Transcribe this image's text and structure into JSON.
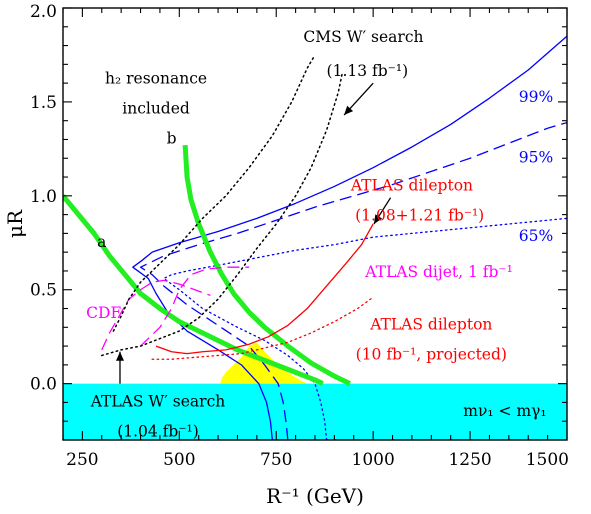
{
  "chart_data": {
    "type": "line",
    "title": "",
    "xlabel": "R⁻¹ (GeV)",
    "ylabel": "μR",
    "xlim": [
      200,
      1500
    ],
    "ylim": [
      -0.3,
      2.0
    ],
    "grid": false,
    "x_ticks": [
      250,
      500,
      750,
      1000,
      1250,
      1500
    ],
    "x_tick_labels": [
      "250",
      "500",
      "750",
      "1000",
      "1250",
      "1500"
    ],
    "y_ticks": [
      0.0,
      0.5,
      1.0,
      1.5,
      2.0
    ],
    "y_tick_labels": [
      "0.0",
      "0.5",
      "1.0",
      "1.5",
      "2.0"
    ],
    "regions": [
      {
        "name": "excluded_band",
        "color": "#00ffff",
        "y_range": [
          -0.3,
          0.0
        ],
        "label": "mν₁ < mγ₁"
      },
      {
        "name": "allowed_region",
        "color": "#ffff00",
        "points": [
          [
            605,
            0.0
          ],
          [
            610,
            0.03
          ],
          [
            620,
            0.06
          ],
          [
            640,
            0.1
          ],
          [
            660,
            0.14
          ],
          [
            680,
            0.2
          ],
          [
            700,
            0.22
          ],
          [
            720,
            0.17
          ],
          [
            750,
            0.11
          ],
          [
            780,
            0.06
          ],
          [
            810,
            0.02
          ],
          [
            830,
            0.0
          ]
        ]
      }
    ],
    "series": [
      {
        "name": "99%",
        "color": "#0000ff",
        "style": "solid",
        "width": 1.3,
        "points": [
          [
            740,
            -0.3
          ],
          [
            735,
            -0.2
          ],
          [
            725,
            -0.1
          ],
          [
            705,
            0.0
          ],
          [
            660,
            0.1
          ],
          [
            600,
            0.18
          ],
          [
            520,
            0.28
          ],
          [
            470,
            0.38
          ],
          [
            440,
            0.48
          ],
          [
            420,
            0.56
          ],
          [
            380,
            0.62
          ],
          [
            400,
            0.65
          ],
          [
            430,
            0.7
          ],
          [
            500,
            0.75
          ],
          [
            600,
            0.81
          ],
          [
            700,
            0.88
          ],
          [
            800,
            0.96
          ],
          [
            900,
            1.05
          ],
          [
            1000,
            1.15
          ],
          [
            1100,
            1.26
          ],
          [
            1200,
            1.38
          ],
          [
            1300,
            1.52
          ],
          [
            1400,
            1.67
          ],
          [
            1500,
            1.85
          ]
        ]
      },
      {
        "name": "95%",
        "color": "#0000ff",
        "style": "dashed",
        "width": 1.3,
        "points": [
          [
            780,
            -0.3
          ],
          [
            775,
            -0.2
          ],
          [
            768,
            -0.1
          ],
          [
            755,
            0.0
          ],
          [
            720,
            0.1
          ],
          [
            680,
            0.2
          ],
          [
            600,
            0.31
          ],
          [
            520,
            0.42
          ],
          [
            460,
            0.52
          ],
          [
            430,
            0.58
          ],
          [
            400,
            0.62
          ],
          [
            420,
            0.64
          ],
          [
            460,
            0.68
          ],
          [
            550,
            0.74
          ],
          [
            650,
            0.8
          ],
          [
            750,
            0.87
          ],
          [
            850,
            0.94
          ],
          [
            950,
            1.0
          ],
          [
            1050,
            1.06
          ],
          [
            1150,
            1.13
          ],
          [
            1250,
            1.2
          ],
          [
            1350,
            1.28
          ],
          [
            1450,
            1.36
          ],
          [
            1500,
            1.39
          ]
        ]
      },
      {
        "name": "65%",
        "color": "#0000ff",
        "style": "dotted",
        "width": 1.3,
        "points": [
          [
            880,
            -0.3
          ],
          [
            875,
            -0.2
          ],
          [
            865,
            -0.1
          ],
          [
            850,
            0.0
          ],
          [
            820,
            0.08
          ],
          [
            780,
            0.15
          ],
          [
            720,
            0.23
          ],
          [
            650,
            0.3
          ],
          [
            560,
            0.4
          ],
          [
            500,
            0.5
          ],
          [
            460,
            0.56
          ],
          [
            480,
            0.58
          ],
          [
            520,
            0.6
          ],
          [
            600,
            0.63
          ],
          [
            700,
            0.67
          ],
          [
            800,
            0.71
          ],
          [
            900,
            0.74
          ],
          [
            1000,
            0.78
          ],
          [
            1100,
            0.8
          ],
          [
            1200,
            0.82
          ],
          [
            1300,
            0.84
          ],
          [
            1400,
            0.86
          ],
          [
            1500,
            0.88
          ]
        ]
      },
      {
        "name": "a",
        "color": "#22ee22",
        "style": "solid",
        "width": 5,
        "points": [
          [
            200,
            1.0
          ],
          [
            240,
            0.9
          ],
          [
            280,
            0.8
          ],
          [
            320,
            0.68
          ],
          [
            360,
            0.58
          ],
          [
            400,
            0.48
          ],
          [
            450,
            0.4
          ],
          [
            500,
            0.33
          ],
          [
            550,
            0.28
          ],
          [
            600,
            0.23
          ],
          [
            650,
            0.18
          ],
          [
            700,
            0.14
          ],
          [
            750,
            0.1
          ],
          [
            800,
            0.06
          ],
          [
            850,
            0.02
          ],
          [
            870,
            0.0
          ]
        ]
      },
      {
        "name": "b",
        "color": "#22ee22",
        "style": "solid",
        "width": 5,
        "points": [
          [
            515,
            1.27
          ],
          [
            520,
            1.1
          ],
          [
            530,
            0.98
          ],
          [
            550,
            0.85
          ],
          [
            580,
            0.7
          ],
          [
            610,
            0.58
          ],
          [
            640,
            0.48
          ],
          [
            680,
            0.38
          ],
          [
            720,
            0.3
          ],
          [
            780,
            0.2
          ],
          [
            840,
            0.11
          ],
          [
            900,
            0.04
          ],
          [
            940,
            0.0
          ]
        ]
      },
      {
        "name": "ATLAS dilepton",
        "color": "#ff0000",
        "style": "solid",
        "width": 1.3,
        "points": [
          [
            440,
            0.2
          ],
          [
            480,
            0.17
          ],
          [
            520,
            0.16
          ],
          [
            560,
            0.17
          ],
          [
            620,
            0.18
          ],
          [
            680,
            0.21
          ],
          [
            730,
            0.25
          ],
          [
            780,
            0.31
          ],
          [
            830,
            0.4
          ],
          [
            880,
            0.52
          ],
          [
            930,
            0.64
          ],
          [
            970,
            0.74
          ],
          [
            1000,
            0.85
          ]
        ]
      },
      {
        "name": "ATLAS dilepton (10 fb⁻¹, projected)",
        "color": "#ff0000",
        "style": "dotted",
        "width": 1.3,
        "points": [
          [
            430,
            0.13
          ],
          [
            480,
            0.13
          ],
          [
            540,
            0.14
          ],
          [
            600,
            0.15
          ],
          [
            660,
            0.16
          ],
          [
            720,
            0.19
          ],
          [
            780,
            0.22
          ],
          [
            840,
            0.27
          ],
          [
            900,
            0.33
          ],
          [
            960,
            0.4
          ],
          [
            1000,
            0.46
          ]
        ]
      },
      {
        "name": "CDF",
        "color": "#ff00ff",
        "style": "dashed",
        "width": 1.3,
        "points": [
          [
            300,
            0.18
          ],
          [
            320,
            0.27
          ],
          [
            345,
            0.36
          ],
          [
            370,
            0.45
          ],
          [
            400,
            0.5
          ],
          [
            430,
            0.54
          ],
          [
            460,
            0.55
          ],
          [
            500,
            0.53
          ],
          [
            540,
            0.5
          ],
          [
            580,
            0.47
          ]
        ]
      },
      {
        "name": "ATLAS dijet, 1 fb⁻¹",
        "color": "#ff00ff",
        "style": "dashed",
        "width": 1.3,
        "points": [
          [
            400,
            0.2
          ],
          [
            420,
            0.24
          ],
          [
            450,
            0.3
          ],
          [
            480,
            0.4
          ],
          [
            500,
            0.5
          ],
          [
            530,
            0.58
          ],
          [
            570,
            0.61
          ],
          [
            620,
            0.62
          ],
          [
            680,
            0.62
          ]
        ]
      },
      {
        "name": "ATLAS W′ search",
        "color": "#000000",
        "style": "dotted",
        "width": 1.5,
        "points": [
          [
            300,
            0.15
          ],
          [
            350,
            0.18
          ],
          [
            400,
            0.2
          ],
          [
            450,
            0.24
          ],
          [
            500,
            0.28
          ],
          [
            550,
            0.35
          ],
          [
            600,
            0.45
          ],
          [
            650,
            0.58
          ],
          [
            700,
            0.72
          ],
          [
            750,
            0.85
          ],
          [
            800,
            1.0
          ],
          [
            840,
            1.15
          ],
          [
            880,
            1.35
          ],
          [
            910,
            1.55
          ],
          [
            920,
            1.65
          ]
        ]
      },
      {
        "name": "CMS W′ search",
        "color": "#000000",
        "style": "dotted",
        "width": 1.5,
        "points": [
          [
            330,
            0.28
          ],
          [
            350,
            0.36
          ],
          [
            370,
            0.45
          ],
          [
            400,
            0.54
          ],
          [
            440,
            0.62
          ],
          [
            500,
            0.74
          ],
          [
            560,
            0.88
          ],
          [
            620,
            1.0
          ],
          [
            680,
            1.15
          ],
          [
            740,
            1.32
          ],
          [
            790,
            1.5
          ],
          [
            830,
            1.68
          ],
          [
            850,
            1.75
          ]
        ]
      }
    ],
    "annotations": [
      {
        "name": "cms-label",
        "text": "CMS W′ search",
        "color": "#000000",
        "x": 975,
        "y": 1.84,
        "anchor": "middle"
      },
      {
        "name": "cms-lumi",
        "text": "(1.13 fb⁻¹)",
        "color": "#000000",
        "x": 985,
        "y": 1.66,
        "anchor": "middle"
      },
      {
        "name": "h2-label-1",
        "text": "h₂ resonance",
        "color": "#000000",
        "x": 440,
        "y": 1.62,
        "anchor": "middle"
      },
      {
        "name": "h2-label-2",
        "text": "included",
        "color": "#000000",
        "x": 440,
        "y": 1.46,
        "anchor": "middle"
      },
      {
        "name": "label-b",
        "text": "b",
        "color": "#000000",
        "x": 480,
        "y": 1.3,
        "anchor": "middle"
      },
      {
        "name": "label-a",
        "text": "a",
        "color": "#000000",
        "x": 300,
        "y": 0.75,
        "anchor": "middle"
      },
      {
        "name": "label-99",
        "text": "99%",
        "color": "#0000ff",
        "x": 1420,
        "y": 1.52,
        "anchor": "middle"
      },
      {
        "name": "label-95",
        "text": "95%",
        "color": "#0000ff",
        "x": 1420,
        "y": 1.2,
        "anchor": "middle"
      },
      {
        "name": "label-65",
        "text": "65%",
        "color": "#0000ff",
        "x": 1420,
        "y": 0.78,
        "anchor": "middle"
      },
      {
        "name": "atlas-dilepton-label",
        "text": "ATLAS dilepton",
        "color": "#ff0000",
        "x": 1100,
        "y": 1.05,
        "anchor": "middle"
      },
      {
        "name": "atlas-dilepton-lumi",
        "text": "(1.08+1.21 fb⁻¹)",
        "color": "#ff0000",
        "x": 1120,
        "y": 0.89,
        "anchor": "middle"
      },
      {
        "name": "atlas-dijet-label",
        "text": "ATLAS dijet, 1 fb⁻¹",
        "color": "#ff00ff",
        "x": 1170,
        "y": 0.59,
        "anchor": "middle"
      },
      {
        "name": "cdf-label",
        "text": "CDF",
        "color": "#ff00ff",
        "x": 305,
        "y": 0.37,
        "anchor": "middle"
      },
      {
        "name": "atlas-proj-label",
        "text": "ATLAS dilepton",
        "color": "#ff0000",
        "x": 1150,
        "y": 0.31,
        "anchor": "middle"
      },
      {
        "name": "atlas-proj-lumi",
        "text": "(10 fb⁻¹, projected)",
        "color": "#ff0000",
        "x": 1150,
        "y": 0.15,
        "anchor": "middle"
      },
      {
        "name": "atlas-wprime-label",
        "text": "ATLAS W′ search",
        "color": "#000000",
        "x": 445,
        "y": -0.1,
        "anchor": "middle"
      },
      {
        "name": "atlas-wprime-lumi",
        "text": "(1.04 fb⁻¹)",
        "color": "#000000",
        "x": 445,
        "y": -0.26,
        "anchor": "middle"
      },
      {
        "name": "mass-label",
        "text": "mν₁ < mγ₁",
        "color": "#000000",
        "x": 1340,
        "y": -0.15,
        "anchor": "middle"
      }
    ],
    "arrows": [
      {
        "name": "cms-arrow",
        "from": [
          1000,
          1.6
        ],
        "to": [
          925,
          1.43
        ]
      },
      {
        "name": "atlas-dilepton-arrow",
        "from": [
          1045,
          0.99
        ],
        "to": [
          1002,
          0.85
        ]
      },
      {
        "name": "atlas-wprime-arrow",
        "from": [
          347,
          0.0
        ],
        "to": [
          347,
          0.17
        ]
      }
    ]
  }
}
